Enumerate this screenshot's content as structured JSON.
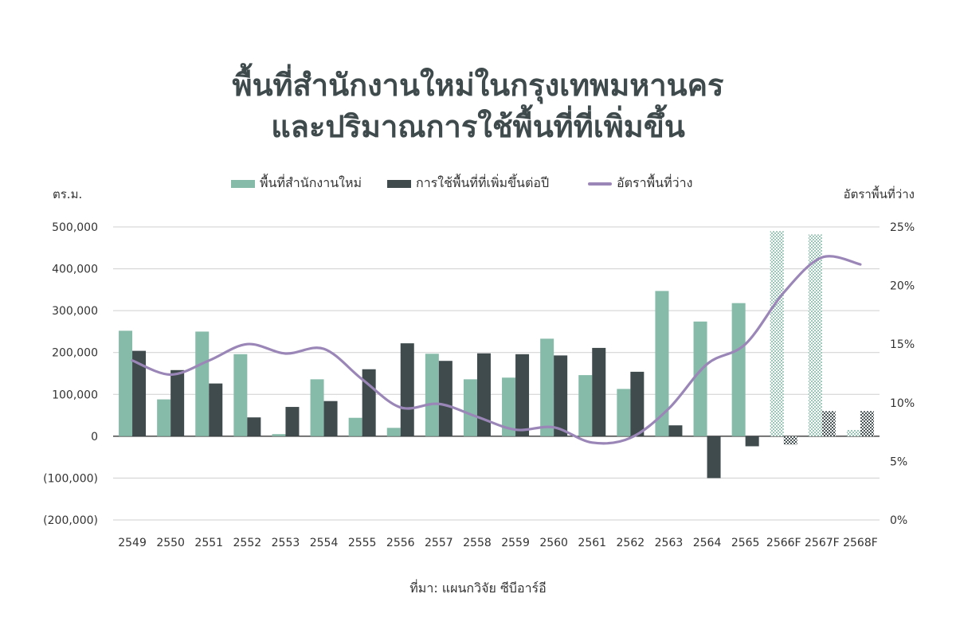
{
  "title": {
    "line1": "พื้นที่สำนักงานใหม่ในกรุงเทพมหานคร",
    "line2": "และปริมาณการใช้พื้นที่ที่เพิ่มขึ้น"
  },
  "source": "ที่มา: แผนกวิจัย ซีบีอาร์อี",
  "colors": {
    "new_supply": "#86bba9",
    "net_absorption": "#3f4b4d",
    "vacancy": "#9b86b8",
    "grid": "#cfcfcf"
  },
  "chart_data": {
    "type": "bar",
    "categories": [
      "2549",
      "2550",
      "2551",
      "2552",
      "2553",
      "2554",
      "2555",
      "2556",
      "2557",
      "2558",
      "2559",
      "2560",
      "2561",
      "2562",
      "2563",
      "2564",
      "2565",
      "2566F",
      "2567F",
      "2568F"
    ],
    "forecast_categories": [
      "2566F",
      "2567F",
      "2568F"
    ],
    "left_axis_label": "ตร.ม.",
    "right_axis_label": "อัตราพื้นที่ว่าง",
    "ylim": [
      -200000,
      500000
    ],
    "y_ticks": [
      500000,
      400000,
      300000,
      200000,
      100000,
      0,
      -100000,
      -200000
    ],
    "y_tick_labels": [
      "500,000",
      "400,000",
      "300,000",
      "200,000",
      "100,000",
      "0",
      "(100,000)",
      "(200,000)"
    ],
    "y2lim": [
      0,
      25
    ],
    "y2_ticks": [
      25,
      20,
      15,
      10,
      5,
      0
    ],
    "y2_tick_labels": [
      "25%",
      "20%",
      "15%",
      "10%",
      "5%",
      "0%"
    ],
    "grid": true,
    "legend_position": "top",
    "series": [
      {
        "name": "พื้นที่สำนักงานใหม่",
        "type": "bar",
        "axis": "left",
        "values": [
          252000,
          88000,
          250000,
          196000,
          5000,
          136000,
          44000,
          20000,
          197000,
          136000,
          140000,
          233000,
          146000,
          113000,
          347000,
          274000,
          318000,
          490000,
          482000,
          15000
        ]
      },
      {
        "name": "การใช้พื้นที่ที่เพิ่มขึ้นต่อปี",
        "type": "bar",
        "axis": "left",
        "values": [
          204000,
          158000,
          126000,
          45000,
          70000,
          84000,
          160000,
          222000,
          180000,
          198000,
          196000,
          193000,
          211000,
          154000,
          26000,
          -100000,
          -24000,
          -20000,
          60000,
          60000
        ]
      },
      {
        "name": "อัตราพื้นที่ว่าง",
        "type": "line",
        "axis": "right",
        "values": [
          13.6,
          12.4,
          13.6,
          15.0,
          14.2,
          14.6,
          12.0,
          9.6,
          9.9,
          8.8,
          7.7,
          7.9,
          6.6,
          7.0,
          9.5,
          13.3,
          15.0,
          19.4,
          22.4,
          21.8
        ]
      }
    ]
  }
}
